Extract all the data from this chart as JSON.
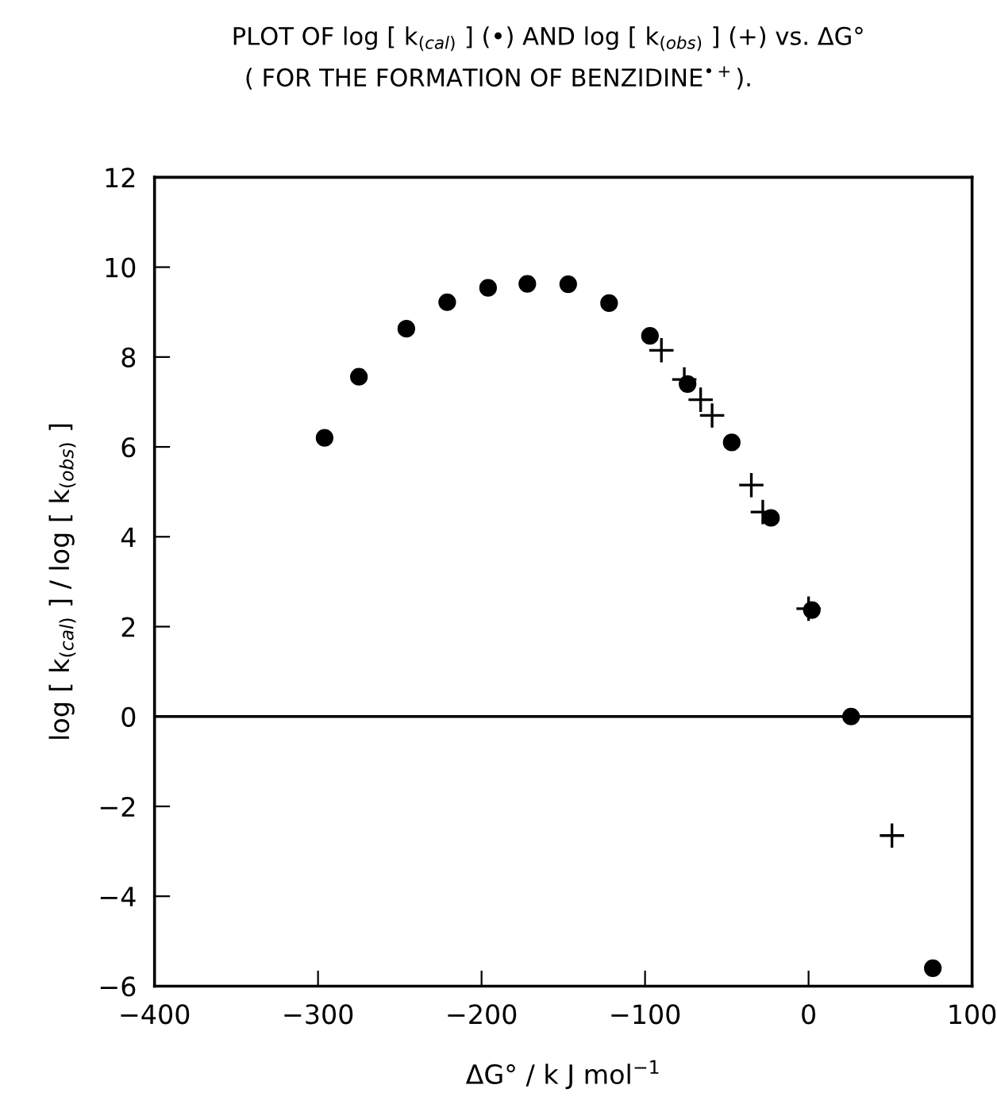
{
  "chart_data": {
    "type": "scatter",
    "title": "PLOT OF log [ k$_{(cal)}$ ] (•) AND log [ k$_{(obs)}$ ] (+) vs. ΔG°",
    "subtitle": "( FOR THE FORMATION OF BENZIDINE$^{•+}$).",
    "xlabel": "ΔG° / k J mol$^{−1}$",
    "ylabel": "log [ k$_{(cal)}$ ] / log [ k$_{(obs)}$ ]",
    "series": [
      {
        "color": "#000000",
        "marker": "circle",
        "x": [
          -296,
          -275,
          -246,
          -221,
          -196,
          -172,
          -147,
          -122,
          -97,
          -74,
          -47,
          -23,
          2,
          26,
          76
        ],
        "values": [
          6.2,
          7.56,
          8.63,
          9.22,
          9.54,
          9.63,
          9.62,
          9.2,
          8.47,
          7.4,
          6.1,
          4.42,
          2.37,
          0,
          -5.6
        ]
      },
      {
        "color": "#000000",
        "marker": "cross",
        "x": [
          -90,
          -76,
          -66,
          -59,
          -35,
          -28,
          0,
          51
        ],
        "values": [
          8.15,
          7.5,
          7.05,
          6.7,
          5.15,
          4.55,
          2.4,
          -2.65
        ]
      }
    ],
    "xlim": [
      -400,
      100
    ],
    "xticks": [
      -400,
      -300,
      -200,
      -100,
      0,
      100
    ],
    "ylim": [
      -6,
      12
    ],
    "yticks": [
      -6,
      -4,
      -2,
      0,
      2,
      4,
      6,
      8,
      10,
      12
    ],
    "ref_lines": [
      {
        "axis": "y",
        "value": 0,
        "color": "#000000",
        "line_style": "solid"
      }
    ],
    "grid": false,
    "legend": false
  }
}
